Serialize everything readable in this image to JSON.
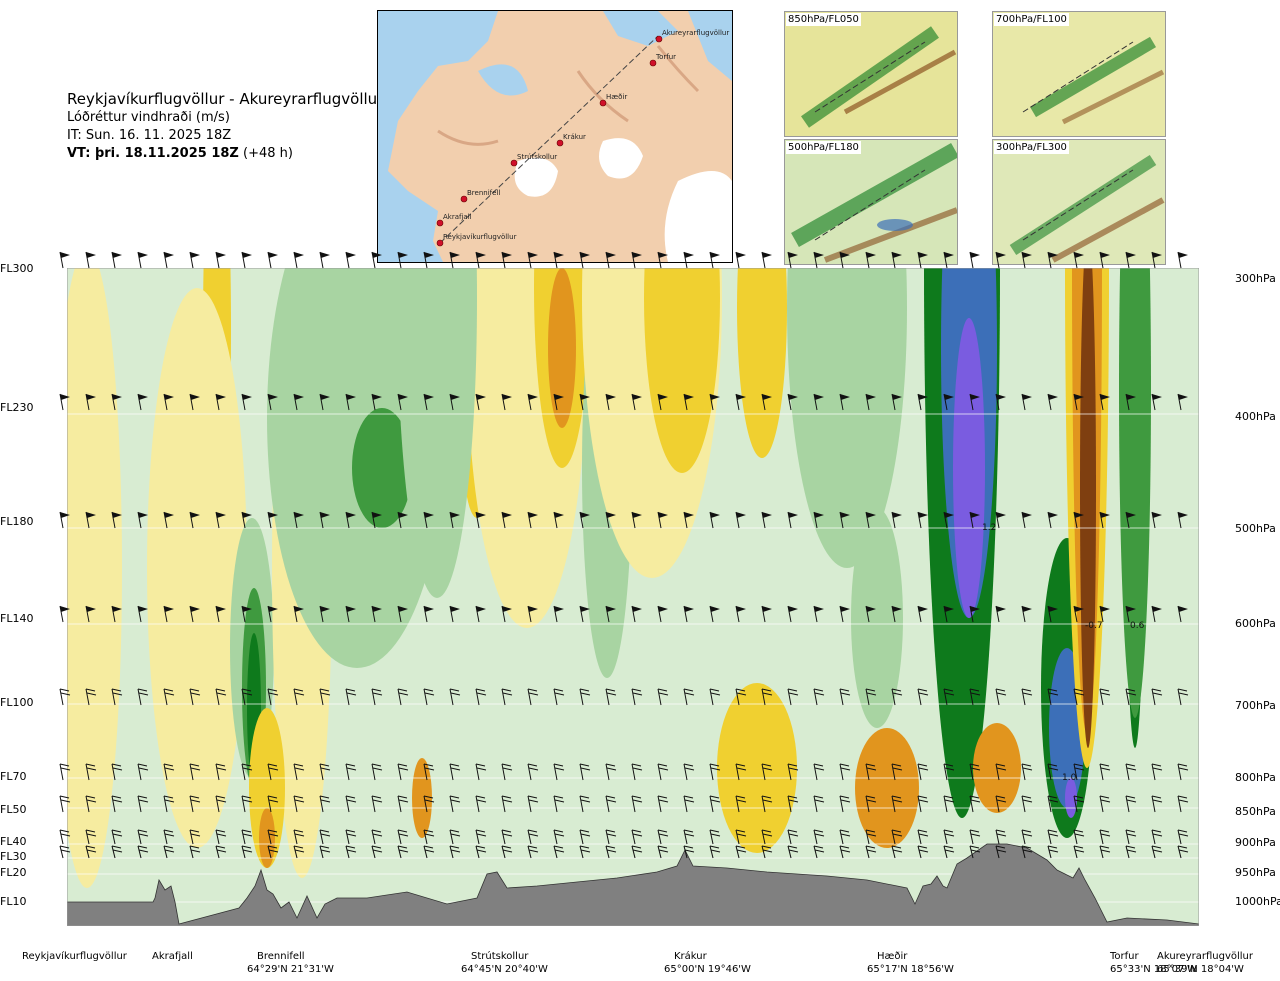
{
  "header": {
    "title": "Reykjavíkurflugvöllur - Akureyrarflugvöllur",
    "subtitle": "Lóðréttur vindhraði (m/s)",
    "init_time": "IT: Sun. 16. 11. 2025 18Z",
    "valid_time": "VT: þri. 18.11.2025 18Z",
    "lead": "(+48 h)"
  },
  "map": {
    "points": [
      {
        "name": "Akureyrarflugvöllur"
      },
      {
        "name": "Torfur"
      },
      {
        "name": "Hæðir"
      },
      {
        "name": "Krákur"
      },
      {
        "name": "Strútskollur"
      },
      {
        "name": "Brennifell"
      },
      {
        "name": "Akrafjall"
      },
      {
        "name": "Reykjavíkurflugvöllur"
      }
    ]
  },
  "thumbnails": [
    {
      "label": "850hPa/FL050"
    },
    {
      "label": "700hPa/FL100"
    },
    {
      "label": "500hPa/FL180"
    },
    {
      "label": "300hPa/FL300"
    }
  ],
  "chart_data": {
    "type": "heatmap",
    "colors": {
      "strong_down": "#7f3f10",
      "mod_down": "#e1951e",
      "weak_down": "#f0d030",
      "faint_down": "#f6eca0",
      "faint_up": "#d8ecd2",
      "weak_up": "#a8d4a2",
      "mod_up": "#3f9a3f",
      "strong_up": "#0e7a1c",
      "very_strong_up": "#3c6fb8",
      "extreme_up": "#7a5ce0",
      "terrain": "#808080"
    },
    "flight_levels": [
      {
        "label": "FL300"
      },
      {
        "label": "FL230"
      },
      {
        "label": "FL180"
      },
      {
        "label": "FL140"
      },
      {
        "label": "FL100"
      },
      {
        "label": "FL70"
      },
      {
        "label": "FL50"
      },
      {
        "label": "FL40"
      },
      {
        "label": "FL30"
      },
      {
        "label": "FL20"
      },
      {
        "label": "FL10"
      }
    ],
    "pressure_levels": [
      {
        "label": "300hPa"
      },
      {
        "label": "400hPa"
      },
      {
        "label": "500hPa"
      },
      {
        "label": "600hPa"
      },
      {
        "label": "700hPa"
      },
      {
        "label": "800hPa"
      },
      {
        "label": "850hPa"
      },
      {
        "label": "900hPa"
      },
      {
        "label": "950hPa"
      },
      {
        "label": "1000hPa"
      }
    ],
    "annotations": [
      {
        "text": "1.2"
      },
      {
        "text": "-0.7"
      },
      {
        "text": "0.6"
      },
      {
        "text": "1.0"
      }
    ],
    "locations": [
      {
        "name": "Reykjavíkurflugvöllur",
        "coord": ""
      },
      {
        "name": "Akrafjall",
        "coord": ""
      },
      {
        "name": "Brennifell",
        "coord": "64°29'N 21°31'W"
      },
      {
        "name": "Strútskollur",
        "coord": "64°45'N 20°40'W"
      },
      {
        "name": "Krákur",
        "coord": "65°00'N 19°46'W"
      },
      {
        "name": "Hæðir",
        "coord": "65°17'N 18°56'W"
      },
      {
        "name": "Torfur",
        "coord": "65°33'N 18°07'W"
      },
      {
        "name": "Akureyrarflugvöllur",
        "coord": "65°39'N 18°04'W"
      }
    ]
  }
}
